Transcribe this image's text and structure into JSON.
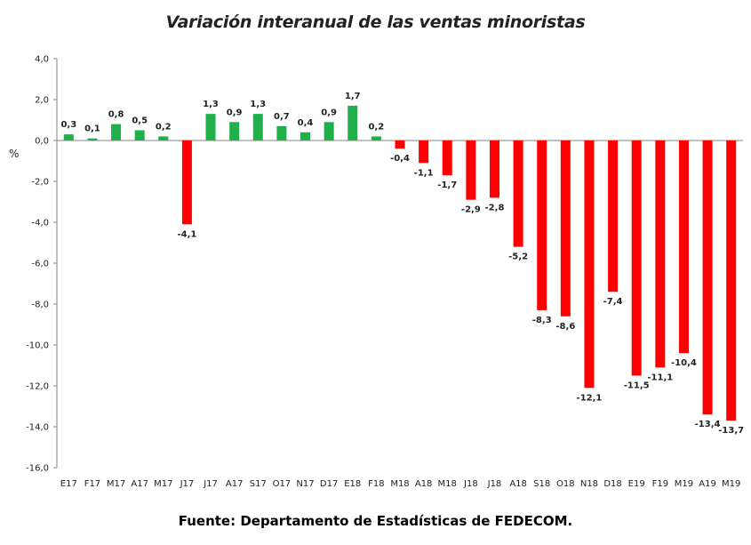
{
  "chart_data": {
    "type": "bar",
    "title": "Variación interanual de las ventas minoristas",
    "ylabel": "%",
    "xlabel": "",
    "ylim": [
      -16,
      4
    ],
    "ytick_labels": [
      "4,0",
      "2,0",
      "0,0",
      "-2,0",
      "-4,0",
      "-6,0",
      "-8,0",
      "-10,0",
      "-12,0",
      "-14,0",
      "-16,0"
    ],
    "categories": [
      "E17",
      "F17",
      "M17",
      "A17",
      "M17",
      "J17",
      "J17",
      "A17",
      "S17",
      "O17",
      "N17",
      "D17",
      "E18",
      "F18",
      "M18",
      "A18",
      "M18",
      "J18",
      "J18",
      "A18",
      "S18",
      "O18",
      "N18",
      "D18",
      "E19",
      "F19",
      "M19",
      "A19",
      "M19"
    ],
    "values": [
      0.3,
      0.1,
      0.8,
      0.5,
      0.2,
      -4.1,
      1.3,
      0.9,
      1.3,
      0.7,
      0.4,
      0.9,
      1.7,
      0.2,
      -0.4,
      -1.1,
      -1.7,
      -2.9,
      -2.8,
      -5.2,
      -8.3,
      -8.6,
      -12.1,
      -7.4,
      -11.5,
      -11.1,
      -10.4,
      -13.4,
      -13.7
    ],
    "data_labels": [
      "0,3",
      "0,1",
      "0,8",
      "0,5",
      "0,2",
      "-4,1",
      "1,3",
      "0,9",
      "1,3",
      "0,7",
      "0,4",
      "0,9",
      "1,7",
      "0,2",
      "-0,4",
      "-1,1",
      "-1,7",
      "-2,9",
      "-2,8",
      "-5,2",
      "-8,3",
      "-8,6",
      "-12,1",
      "-7,4",
      "-11,5",
      "-11,1",
      "-10,4",
      "-13,4",
      "-13,7"
    ],
    "colors": {
      "positive": "#1fb04c",
      "negative": "#ff0000"
    },
    "grid": false,
    "legend": "none"
  },
  "source": "Fuente: Departamento de Estadísticas de FEDECOM."
}
